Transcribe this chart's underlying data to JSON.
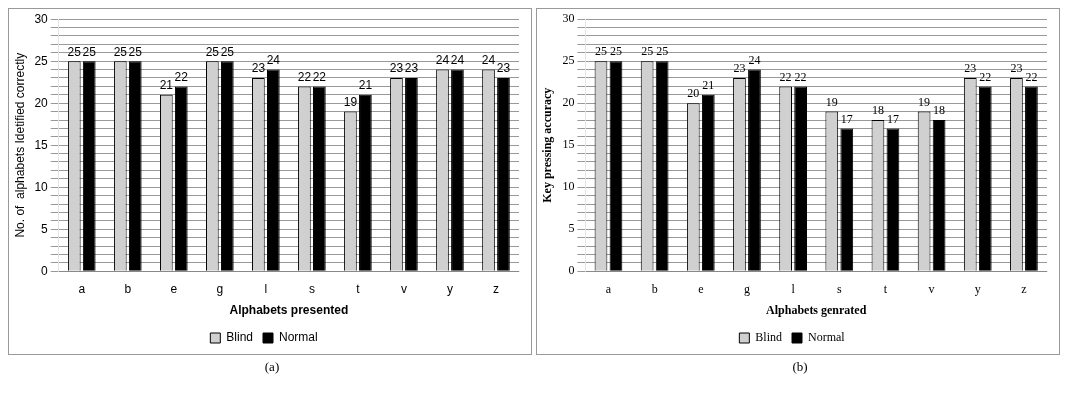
{
  "chart_data": [
    {
      "type": "bar",
      "ylabel": "No. of  alphabets Idetified correctly",
      "xlabel": "Alphabets presented",
      "categories": [
        "a",
        "b",
        "e",
        "g",
        "l",
        "s",
        "t",
        "v",
        "y",
        "z"
      ],
      "series": [
        {
          "name": "Blind",
          "color": "#d0d0d0",
          "values": [
            25,
            25,
            21,
            25,
            23,
            22,
            19,
            23,
            24,
            24
          ]
        },
        {
          "name": "Normal",
          "color": "#000000",
          "values": [
            25,
            25,
            22,
            25,
            24,
            22,
            21,
            23,
            24,
            23
          ]
        }
      ],
      "ylim": [
        0,
        30
      ],
      "yticks": [
        0,
        {
          "value": 1,
          "label": null
        },
        {
          "value": 2,
          "label": null
        },
        {
          "value": 3,
          "label": null
        },
        {
          "value": 4,
          "label": null
        },
        5,
        {
          "value": 6,
          "label": null
        },
        {
          "value": 7,
          "label": null
        },
        {
          "value": 8,
          "label": null
        },
        {
          "value": 9,
          "label": null
        },
        10,
        {
          "value": 11,
          "label": null
        },
        {
          "value": 12,
          "label": null
        },
        {
          "value": 13,
          "label": null
        },
        {
          "value": 14,
          "label": null
        },
        15,
        {
          "value": 16,
          "label": null
        },
        {
          "value": 17,
          "label": null
        },
        {
          "value": 18,
          "label": null
        },
        {
          "value": 19,
          "label": null
        },
        20,
        {
          "value": 21,
          "label": null
        },
        {
          "value": 22,
          "label": null
        },
        {
          "value": 23,
          "label": null
        },
        {
          "value": 24,
          "label": null
        },
        25,
        {
          "value": 26,
          "label": null
        },
        {
          "value": 27,
          "label": null
        },
        {
          "value": 28,
          "label": null
        },
        {
          "value": 29,
          "label": null
        },
        30
      ],
      "grid": "y",
      "legend": "bottom",
      "data_labels": true,
      "annotations": [
        "(a)"
      ]
    },
    {
      "type": "bar",
      "ylabel": "Key pressing accuracy",
      "xlabel": "Alphabets genrated",
      "categories": [
        "a",
        "b",
        "e",
        "g",
        "l",
        "s",
        "t",
        "v",
        "y",
        "z"
      ],
      "series": [
        {
          "name": "Blind",
          "color": "#d0d0d0",
          "values": [
            25,
            25,
            20,
            23,
            22,
            19,
            18,
            19,
            23,
            23
          ]
        },
        {
          "name": "Normal",
          "color": "#000000",
          "values": [
            25,
            25,
            21,
            24,
            22,
            17,
            17,
            18,
            22,
            22
          ]
        }
      ],
      "ylim": [
        0,
        30
      ],
      "yticks": [
        0,
        {
          "value": 1,
          "label": null
        },
        {
          "value": 2,
          "label": null
        },
        {
          "value": 3,
          "label": null
        },
        {
          "value": 4,
          "label": null
        },
        5,
        {
          "value": 6,
          "label": null
        },
        {
          "value": 7,
          "label": null
        },
        {
          "value": 8,
          "label": null
        },
        {
          "value": 9,
          "label": null
        },
        10,
        {
          "value": 11,
          "label": null
        },
        {
          "value": 12,
          "label": null
        },
        {
          "value": 13,
          "label": null
        },
        {
          "value": 14,
          "label": null
        },
        15,
        {
          "value": 16,
          "label": null
        },
        {
          "value": 17,
          "label": null
        },
        {
          "value": 18,
          "label": null
        },
        {
          "value": 19,
          "label": null
        },
        20,
        {
          "value": 21,
          "label": null
        },
        {
          "value": 22,
          "label": null
        },
        {
          "value": 23,
          "label": null
        },
        {
          "value": 24,
          "label": null
        },
        25,
        {
          "value": 26,
          "label": null
        },
        {
          "value": 27,
          "label": null
        },
        {
          "value": 28,
          "label": null
        },
        {
          "value": 29,
          "label": null
        },
        30
      ],
      "grid": "y",
      "legend": "bottom",
      "data_labels": true,
      "annotations": [
        "(b)"
      ]
    }
  ]
}
